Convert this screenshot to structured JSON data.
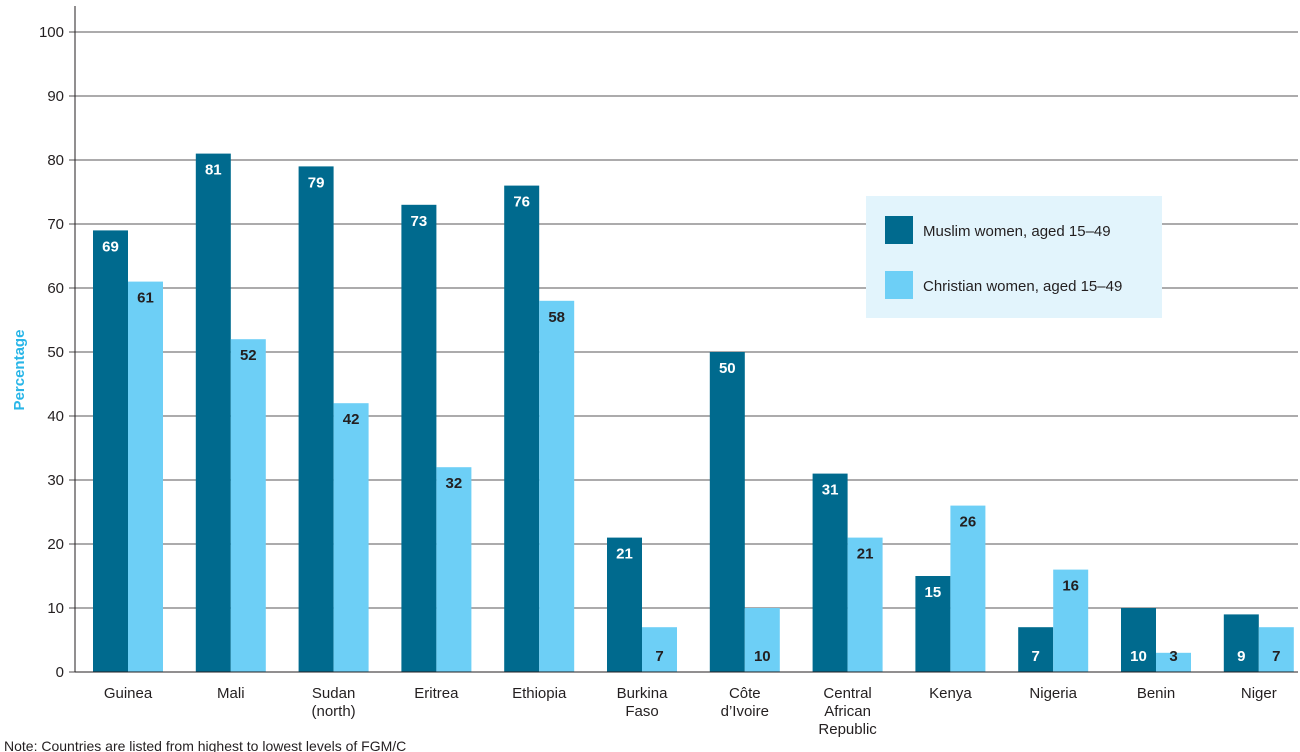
{
  "chart_data": {
    "type": "bar",
    "ylabel": "Percentage",
    "xlabel": "",
    "ylim": [
      0,
      100
    ],
    "yticks": [
      0,
      10,
      20,
      30,
      40,
      50,
      60,
      70,
      80,
      90,
      100
    ],
    "grid": true,
    "legend_position": "right",
    "categories": [
      [
        "Guinea"
      ],
      [
        "Mali"
      ],
      [
        "Sudan",
        "(north)"
      ],
      [
        "Eritrea"
      ],
      [
        "Ethiopia"
      ],
      [
        "Burkina",
        "Faso"
      ],
      [
        "Côte",
        "d’Ivoire"
      ],
      [
        "Central",
        "African",
        "Republic"
      ],
      [
        "Kenya"
      ],
      [
        "Nigeria"
      ],
      [
        "Benin"
      ],
      [
        "Niger"
      ]
    ],
    "series": [
      {
        "name": "Muslim women, aged 15–49",
        "color": "#006a8e",
        "label_color": "#ffffff",
        "values": [
          69,
          81,
          79,
          73,
          76,
          21,
          50,
          31,
          15,
          7,
          10,
          9
        ]
      },
      {
        "name": "Christian women, aged 15–49",
        "color": "#6dcff6",
        "label_color": "#231f20",
        "values": [
          61,
          52,
          42,
          32,
          58,
          7,
          10,
          21,
          26,
          16,
          3,
          7
        ]
      }
    ],
    "note": "Note: Countries are listed from highest to lowest levels of FGM/C"
  }
}
